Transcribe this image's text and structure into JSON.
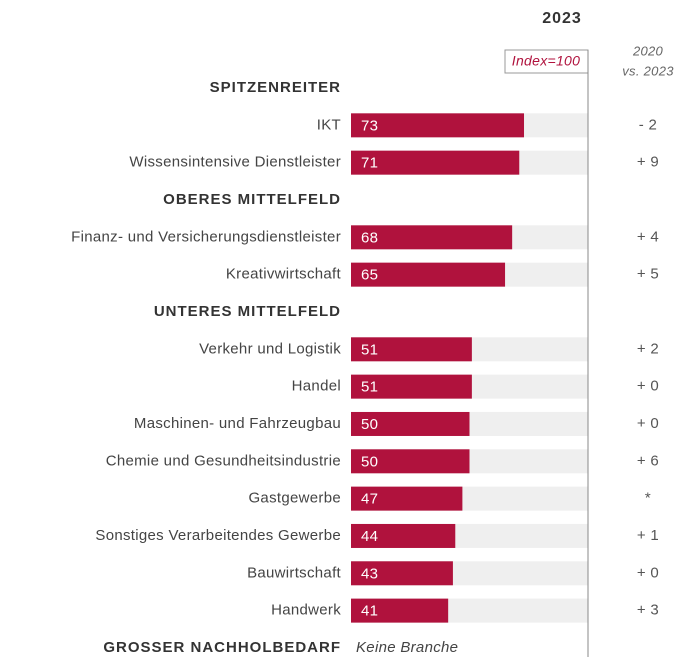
{
  "chart_data": {
    "type": "bar",
    "title": "2023",
    "reference_label": "Index=100",
    "change_header": [
      "2020",
      "vs. 2023"
    ],
    "xlim": [
      0,
      100
    ],
    "color": "#b0123d",
    "track_color": "#efefef",
    "groups": [
      {
        "name": "SPITZENREITER",
        "categories": [
          "IKT",
          "Wissensintensive Dienstleister"
        ],
        "values": [
          73,
          71
        ],
        "change_labels": [
          "- 2",
          "+ 9"
        ]
      },
      {
        "name": "OBERES MITTELFELD",
        "categories": [
          "Finanz- und Versicherungsdienstleister",
          "Kreativwirtschaft"
        ],
        "values": [
          68,
          65
        ],
        "change_labels": [
          "+ 4",
          "+ 5"
        ]
      },
      {
        "name": "UNTERES MITTELFELD",
        "categories": [
          "Verkehr und Logistik",
          "Handel",
          "Maschinen- und Fahrzeugbau",
          "Chemie und Gesundheitsindustrie",
          "Gastgewerbe",
          "Sonstiges Verarbeitendes Gewerbe",
          "Bauwirtschaft",
          "Handwerk"
        ],
        "values": [
          51,
          51,
          50,
          50,
          47,
          44,
          43,
          41
        ],
        "change_labels": [
          "+ 2",
          "+ 0",
          "+ 0",
          "+ 6",
          "*",
          "+ 1",
          "+ 0",
          "+ 3"
        ]
      },
      {
        "name": "GROSSER NACHHOLBEDARF",
        "note": "Keine Branche"
      }
    ]
  }
}
